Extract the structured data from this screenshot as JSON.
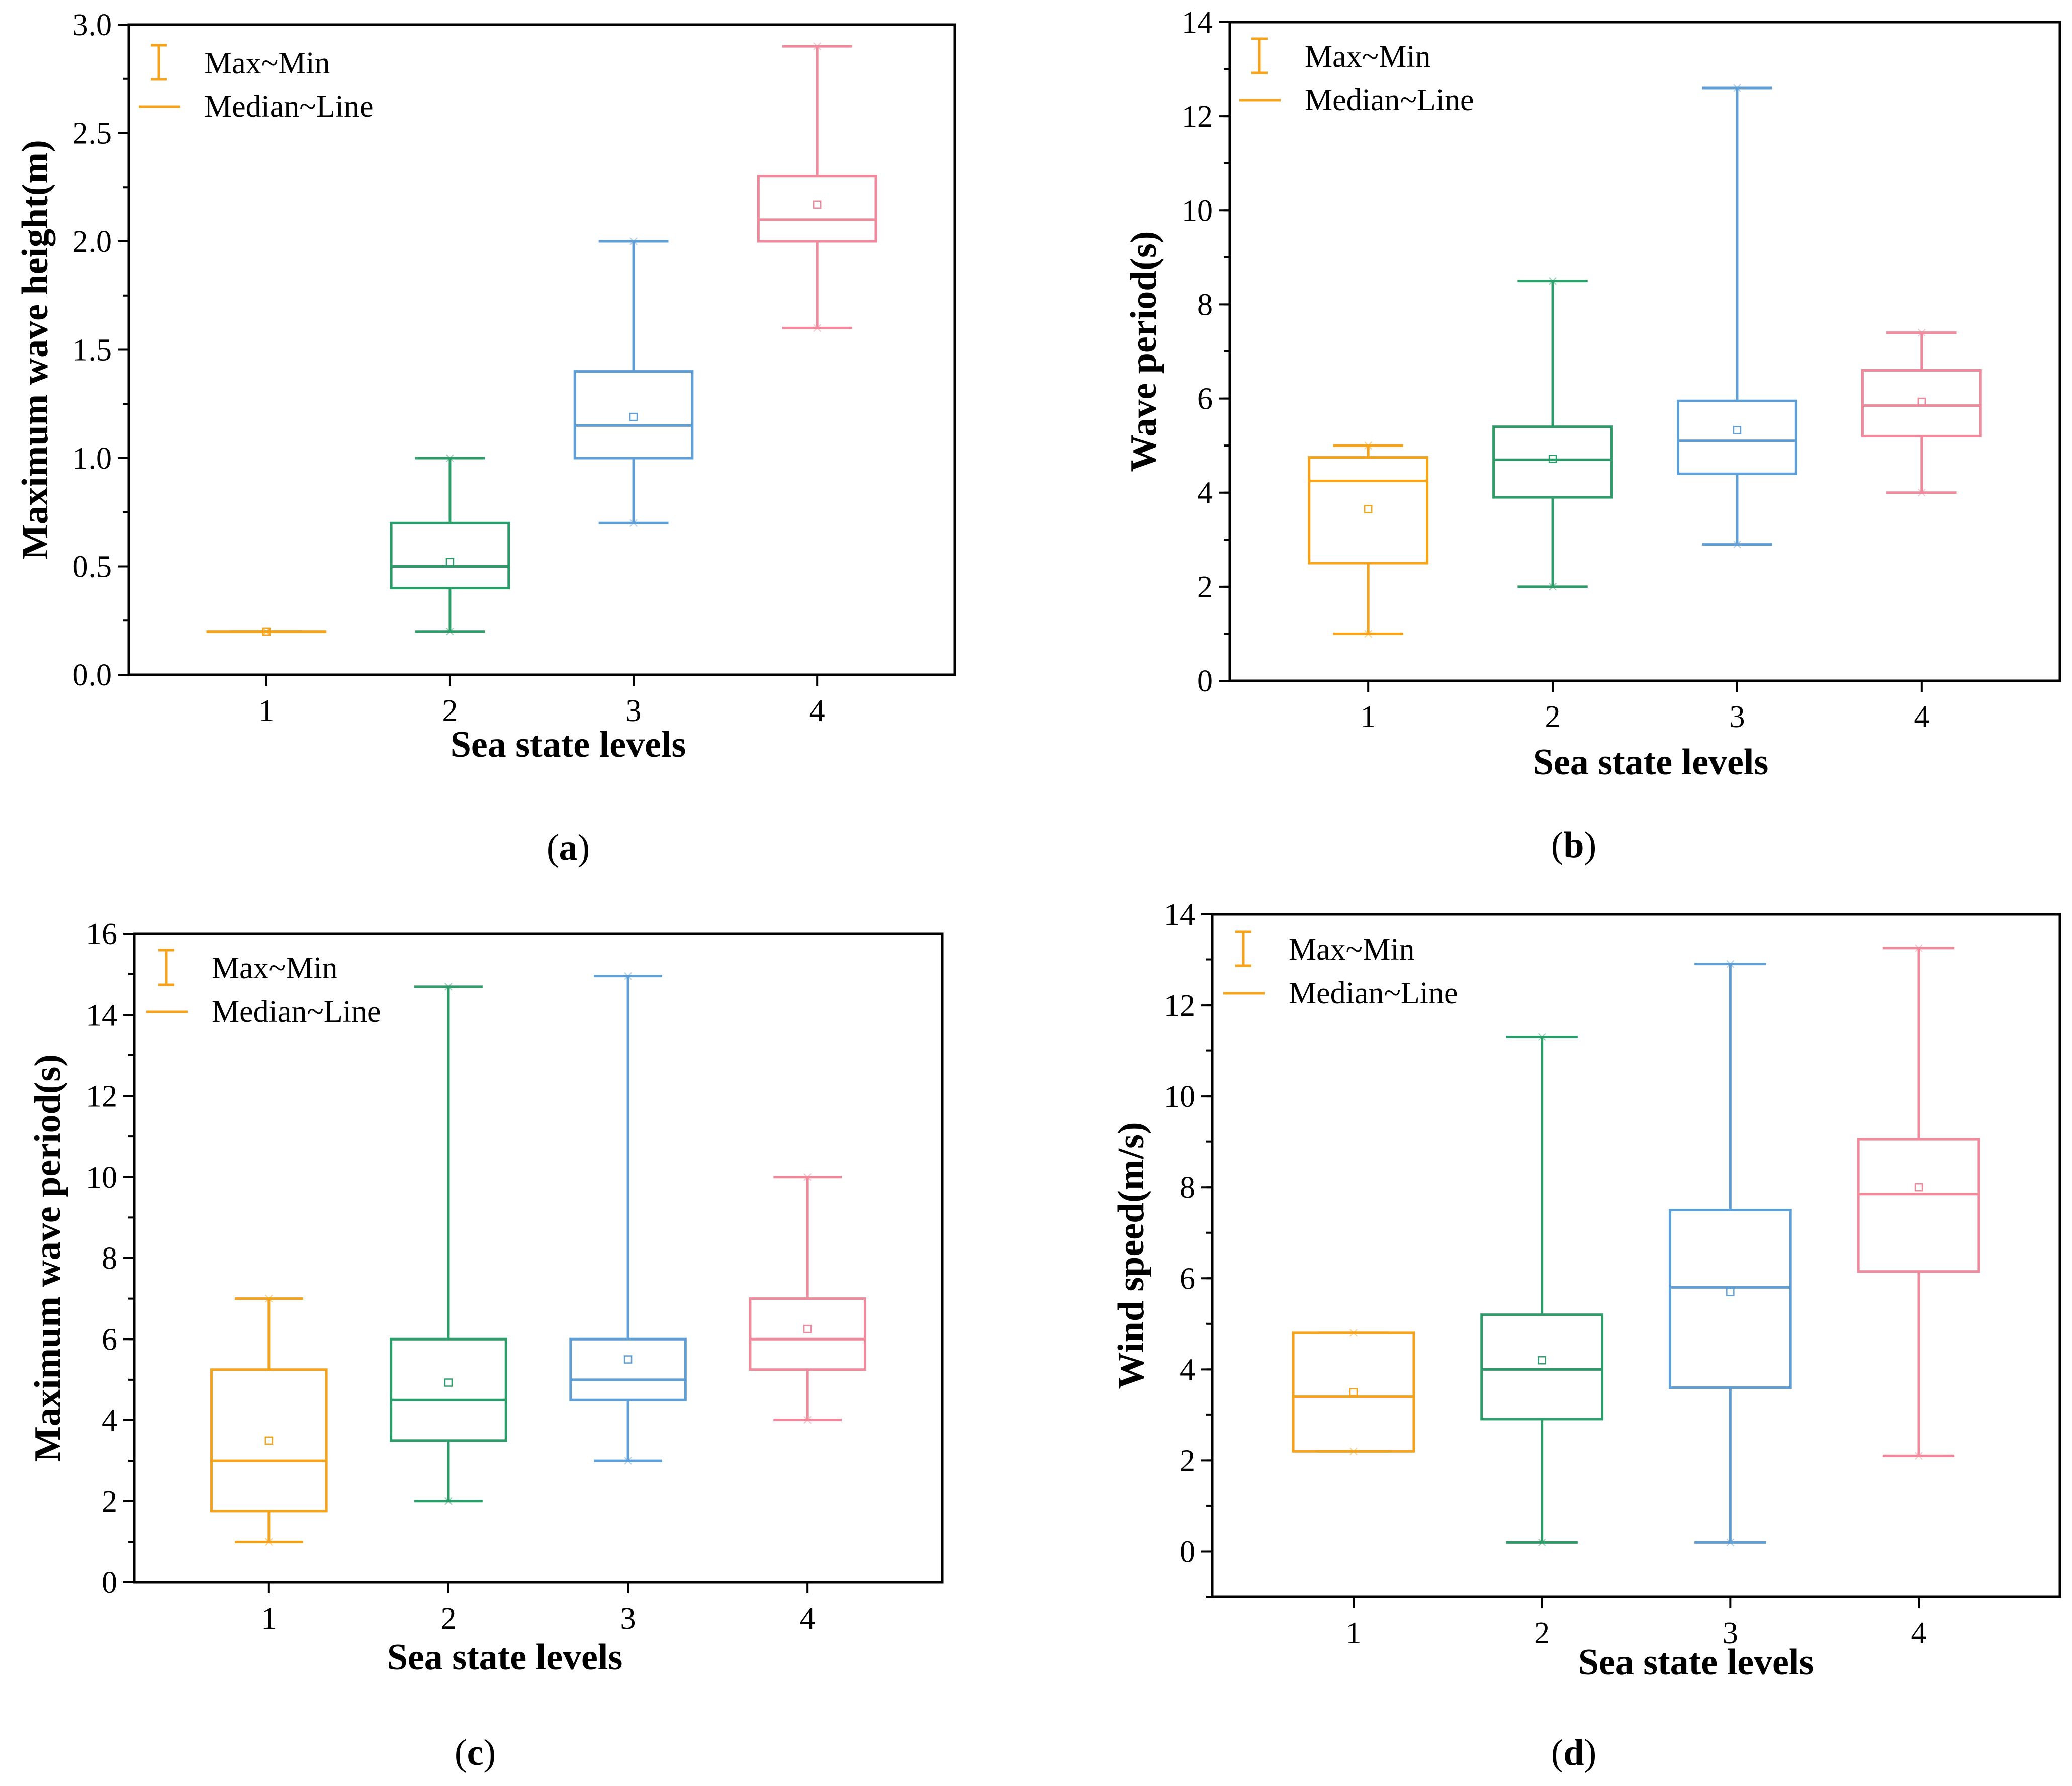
{
  "colors": {
    "1": "#f5a31a",
    "2": "#2e9b6a",
    "3": "#5f9fd6",
    "4": "#ee8a9c",
    "axis": "#000000"
  },
  "legend": {
    "range_label": "Max~Min",
    "median_label": "Median~Line"
  },
  "chart_data": [
    {
      "type": "box",
      "caption": "(a)",
      "caption_letter": "a",
      "xlabel": "Sea state levels",
      "ylabel": "Maximum wave height(m)",
      "ylim": [
        0,
        3.0
      ],
      "yticks": [
        0.0,
        0.5,
        1.0,
        1.5,
        2.0,
        2.5,
        3.0
      ],
      "ytick_labels": [
        "0.0",
        "0.5",
        "1.0",
        "1.5",
        "2.0",
        "2.5",
        "3.0"
      ],
      "minor_step": 0.25,
      "categories": [
        "1",
        "2",
        "3",
        "4"
      ],
      "boxes": [
        {
          "min": 0.2,
          "q1": 0.2,
          "median": 0.2,
          "q3": 0.2,
          "max": 0.2,
          "mean": 0.2
        },
        {
          "min": 0.2,
          "q1": 0.4,
          "median": 0.5,
          "q3": 0.7,
          "max": 1.0,
          "mean": 0.52
        },
        {
          "min": 0.7,
          "q1": 1.0,
          "median": 1.15,
          "q3": 1.4,
          "max": 2.0,
          "mean": 1.19
        },
        {
          "min": 1.6,
          "q1": 2.0,
          "median": 2.1,
          "q3": 2.3,
          "max": 2.9,
          "mean": 2.17
        }
      ]
    },
    {
      "type": "box",
      "caption": "(b)",
      "caption_letter": "b",
      "xlabel": "Sea state levels",
      "ylabel": "Wave period(s)",
      "ylim": [
        0,
        14
      ],
      "yticks": [
        0,
        2,
        4,
        6,
        8,
        10,
        12,
        14
      ],
      "ytick_labels": [
        "0",
        "2",
        "4",
        "6",
        "8",
        "10",
        "12",
        "14"
      ],
      "minor_step": 1,
      "categories": [
        "1",
        "2",
        "3",
        "4"
      ],
      "boxes": [
        {
          "min": 1.0,
          "q1": 2.5,
          "median": 4.25,
          "q3": 4.75,
          "max": 5.0,
          "mean": 3.65
        },
        {
          "min": 2.0,
          "q1": 3.9,
          "median": 4.7,
          "q3": 5.4,
          "max": 8.5,
          "mean": 4.72
        },
        {
          "min": 2.9,
          "q1": 4.4,
          "median": 5.1,
          "q3": 5.95,
          "max": 12.6,
          "mean": 5.33
        },
        {
          "min": 4.0,
          "q1": 5.2,
          "median": 5.85,
          "q3": 6.6,
          "max": 7.4,
          "mean": 5.93
        }
      ]
    },
    {
      "type": "box",
      "caption": "(c)",
      "caption_letter": "c",
      "xlabel": "Sea state levels",
      "ylabel": "Maximum wave period(s)",
      "ylim": [
        0,
        16
      ],
      "yticks": [
        0,
        2,
        4,
        6,
        8,
        10,
        12,
        14,
        16
      ],
      "ytick_labels": [
        "0",
        "2",
        "4",
        "6",
        "8",
        "10",
        "12",
        "14",
        "16"
      ],
      "minor_step": 1,
      "categories": [
        "1",
        "2",
        "3",
        "4"
      ],
      "boxes": [
        {
          "min": 1.0,
          "q1": 1.75,
          "median": 3.0,
          "q3": 5.25,
          "max": 7.0,
          "mean": 3.5
        },
        {
          "min": 2.0,
          "q1": 3.5,
          "median": 4.5,
          "q3": 6.0,
          "max": 14.7,
          "mean": 4.93
        },
        {
          "min": 3.0,
          "q1": 4.5,
          "median": 5.0,
          "q3": 6.0,
          "max": 14.95,
          "mean": 5.5
        },
        {
          "min": 4.0,
          "q1": 5.25,
          "median": 6.0,
          "q3": 7.0,
          "max": 10.0,
          "mean": 6.25
        }
      ]
    },
    {
      "type": "box",
      "caption": "(d)",
      "caption_letter": "d",
      "xlabel": "Sea state levels",
      "ylabel": "Wind speed(m/s)",
      "ylim": [
        -1,
        14
      ],
      "yticks": [
        0,
        2,
        4,
        6,
        8,
        10,
        12,
        14
      ],
      "ytick_labels": [
        "0",
        "2",
        "4",
        "6",
        "8",
        "10",
        "12",
        "14"
      ],
      "minor_step": 1,
      "categories": [
        "1",
        "2",
        "3",
        "4"
      ],
      "boxes": [
        {
          "min": 2.2,
          "q1": 2.2,
          "median": 3.4,
          "q3": 4.8,
          "max": 4.8,
          "mean": 3.5
        },
        {
          "min": 0.2,
          "q1": 2.9,
          "median": 4.0,
          "q3": 5.2,
          "max": 11.3,
          "mean": 4.2
        },
        {
          "min": 0.2,
          "q1": 3.6,
          "median": 5.8,
          "q3": 7.5,
          "max": 12.9,
          "mean": 5.7
        },
        {
          "min": 2.1,
          "q1": 6.15,
          "median": 7.85,
          "q3": 9.05,
          "max": 13.25,
          "mean": 8.0
        }
      ]
    }
  ]
}
